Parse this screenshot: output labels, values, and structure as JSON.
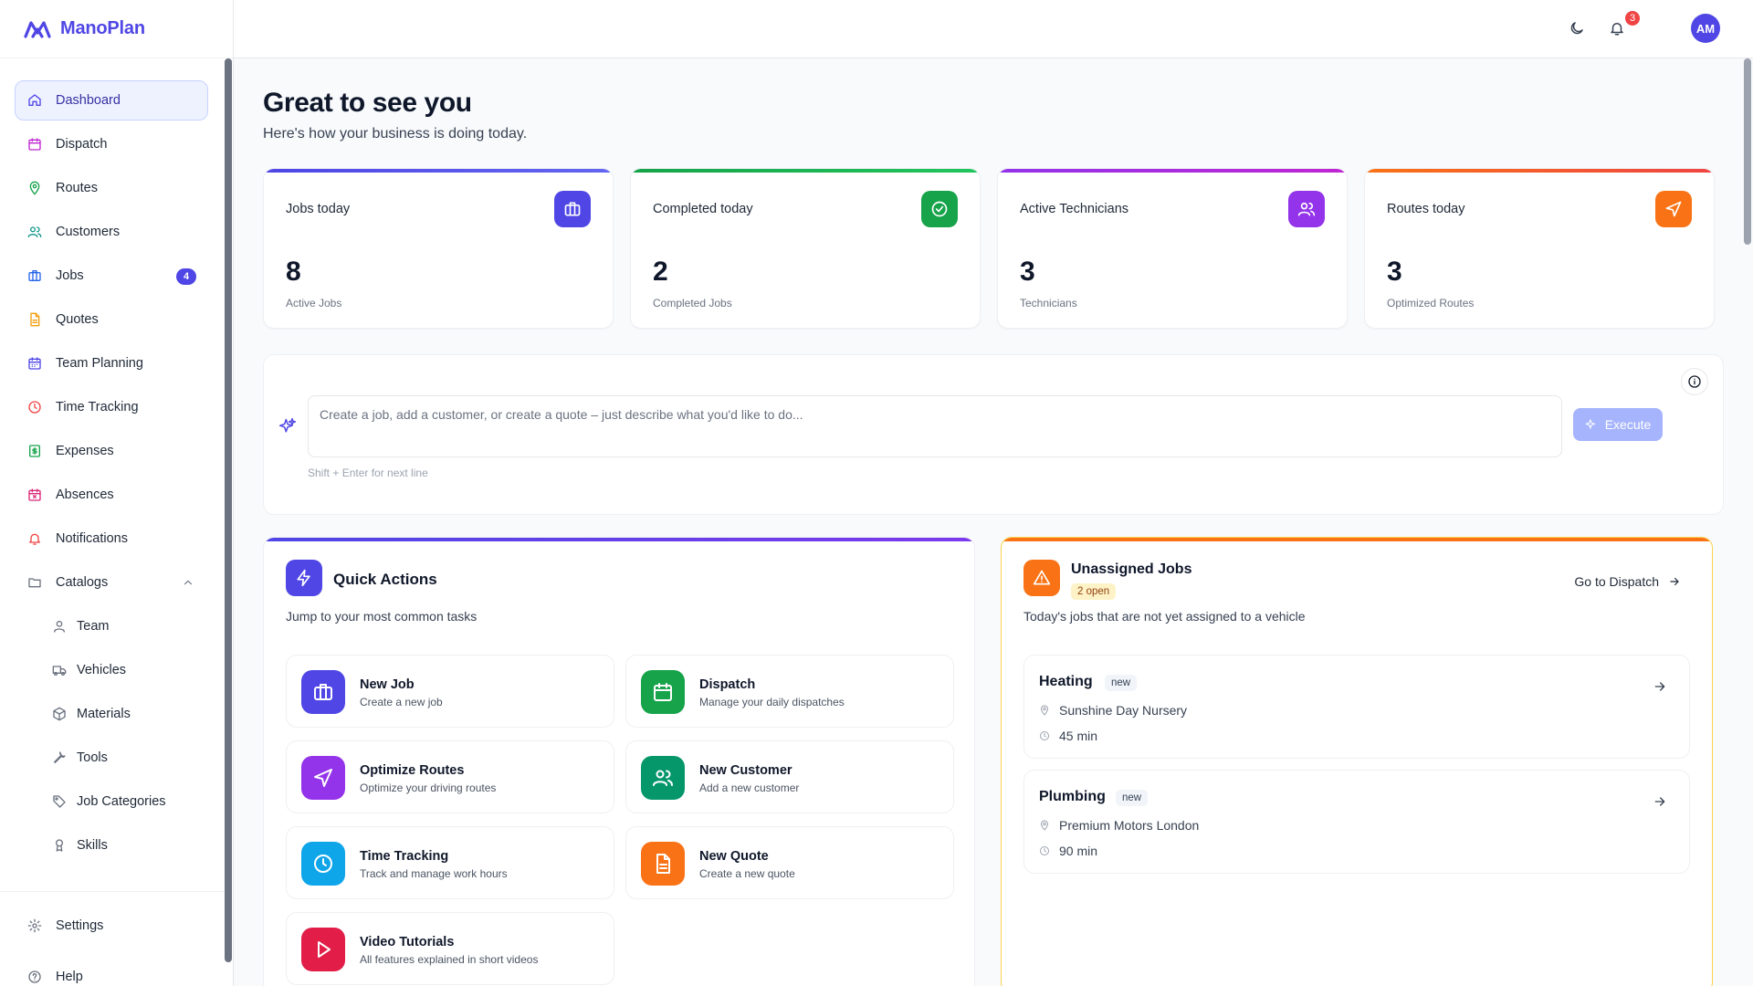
{
  "app": {
    "name": "ManoPlan",
    "logo_icon": "logo-icon"
  },
  "sidebar": {
    "items": [
      {
        "label": "Dashboard",
        "icon": "home-icon",
        "color": "#4f46e5",
        "active": true
      },
      {
        "label": "Dispatch",
        "icon": "calendar-icon",
        "color": "#c026d3"
      },
      {
        "label": "Routes",
        "icon": "map-pin-icon",
        "color": "#16a34a"
      },
      {
        "label": "Customers",
        "icon": "users-icon",
        "color": "#0d9488"
      },
      {
        "label": "Jobs",
        "icon": "briefcase-icon",
        "color": "#2563eb",
        "badge": "4"
      },
      {
        "label": "Quotes",
        "icon": "file-icon",
        "color": "#f59e0b"
      },
      {
        "label": "Team Planning",
        "icon": "calendar-grid-icon",
        "color": "#4f46e5"
      },
      {
        "label": "Time Tracking",
        "icon": "clock-icon",
        "color": "#ef4444"
      },
      {
        "label": "Expenses",
        "icon": "receipt-icon",
        "color": "#16a34a"
      },
      {
        "label": "Absences",
        "icon": "calendar-x-icon",
        "color": "#db2777"
      },
      {
        "label": "Notifications",
        "icon": "bell-icon",
        "color": "#ef4444"
      },
      {
        "label": "Catalogs",
        "icon": "folder-icon",
        "color": "#6b7280",
        "expanded": true
      }
    ],
    "catalog_items": [
      {
        "label": "Team",
        "icon": "user-icon"
      },
      {
        "label": "Vehicles",
        "icon": "truck-icon"
      },
      {
        "label": "Materials",
        "icon": "package-icon"
      },
      {
        "label": "Tools",
        "icon": "wrench-icon"
      },
      {
        "label": "Job Categories",
        "icon": "tag-icon"
      },
      {
        "label": "Skills",
        "icon": "award-icon"
      }
    ],
    "bottom_items": [
      {
        "label": "Settings",
        "icon": "gear-icon"
      },
      {
        "label": "Help",
        "icon": "help-icon"
      }
    ]
  },
  "topbar": {
    "theme_icon": "moon-icon",
    "notifications_icon": "bell-icon",
    "notifications_count": "3",
    "avatar_initials": "AM"
  },
  "greeting": {
    "title": "Great to see you",
    "subtitle": "Here's how your business is doing today."
  },
  "stats": [
    {
      "label": "Jobs today",
      "value": "8",
      "caption": "Active Jobs",
      "icon": "briefcase-icon",
      "color": "#4f46e5"
    },
    {
      "label": "Completed today",
      "value": "2",
      "caption": "Completed Jobs",
      "icon": "check-circle-icon",
      "color": "#16a34a"
    },
    {
      "label": "Active Technicians",
      "value": "3",
      "caption": "Technicians",
      "icon": "users-icon",
      "color": "#9333ea"
    },
    {
      "label": "Routes today",
      "value": "3",
      "caption": "Optimized Routes",
      "icon": "navigation-icon",
      "color": "#f97316"
    }
  ],
  "assistant": {
    "placeholder": "Create a job, add a customer, or create a quote – just describe what you'd like to do...",
    "hint": "Shift + Enter for next line",
    "execute_label": "Execute"
  },
  "quick_actions": {
    "title": "Quick Actions",
    "subtitle": "Jump to your most common tasks",
    "items": [
      {
        "title": "New Job",
        "desc": "Create a new job",
        "icon": "briefcase-icon",
        "color": "#4f46e5"
      },
      {
        "title": "Dispatch",
        "desc": "Manage your daily dispatches",
        "icon": "calendar-icon",
        "color": "#16a34a"
      },
      {
        "title": "Optimize Routes",
        "desc": "Optimize your driving routes",
        "icon": "navigation-icon",
        "color": "#9333ea"
      },
      {
        "title": "New Customer",
        "desc": "Add a new customer",
        "icon": "users-icon",
        "color": "#059669"
      },
      {
        "title": "Time Tracking",
        "desc": "Track and manage work hours",
        "icon": "clock-icon",
        "color": "#0ea5e9"
      },
      {
        "title": "New Quote",
        "desc": "Create a new quote",
        "icon": "file-icon",
        "color": "#f97316"
      },
      {
        "title": "Video Tutorials",
        "desc": "All features explained in short videos",
        "icon": "play-icon",
        "color": "#e11d48"
      }
    ]
  },
  "unassigned": {
    "title": "Unassigned Jobs",
    "badge": "2 open",
    "subtitle": "Today's jobs that are not yet assigned to a vehicle",
    "link_label": "Go to Dispatch",
    "jobs": [
      {
        "title": "Heating",
        "badge": "new",
        "location": "Sunshine Day Nursery",
        "duration": "45 min"
      },
      {
        "title": "Plumbing",
        "badge": "new",
        "location": "Premium Motors London",
        "duration": "90 min"
      }
    ]
  }
}
